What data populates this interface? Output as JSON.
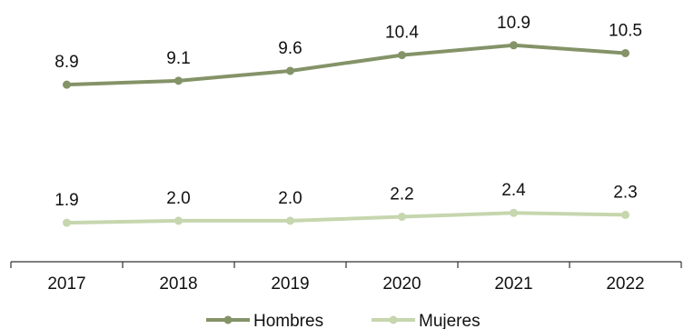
{
  "chart_data": {
    "type": "line",
    "categories": [
      "2017",
      "2018",
      "2019",
      "2020",
      "2021",
      "2022"
    ],
    "series": [
      {
        "name": "Hombres",
        "values": [
          8.9,
          9.1,
          9.6,
          10.4,
          10.9,
          10.5
        ],
        "color": "#849368"
      },
      {
        "name": "Mujeres",
        "values": [
          1.9,
          2.0,
          2.0,
          2.2,
          2.4,
          2.3
        ],
        "color": "#c6d6ae"
      }
    ],
    "value_labels": {
      "Hombres": [
        "8.9",
        "9.1",
        "9.6",
        "10.4",
        "10.9",
        "10.5"
      ],
      "Mujeres": [
        "1.9",
        "2.0",
        "2.0",
        "2.2",
        "2.4",
        "2.3"
      ]
    },
    "title": "",
    "xlabel": "",
    "ylabel": "",
    "grid": false,
    "legend_position": "bottom-center"
  }
}
